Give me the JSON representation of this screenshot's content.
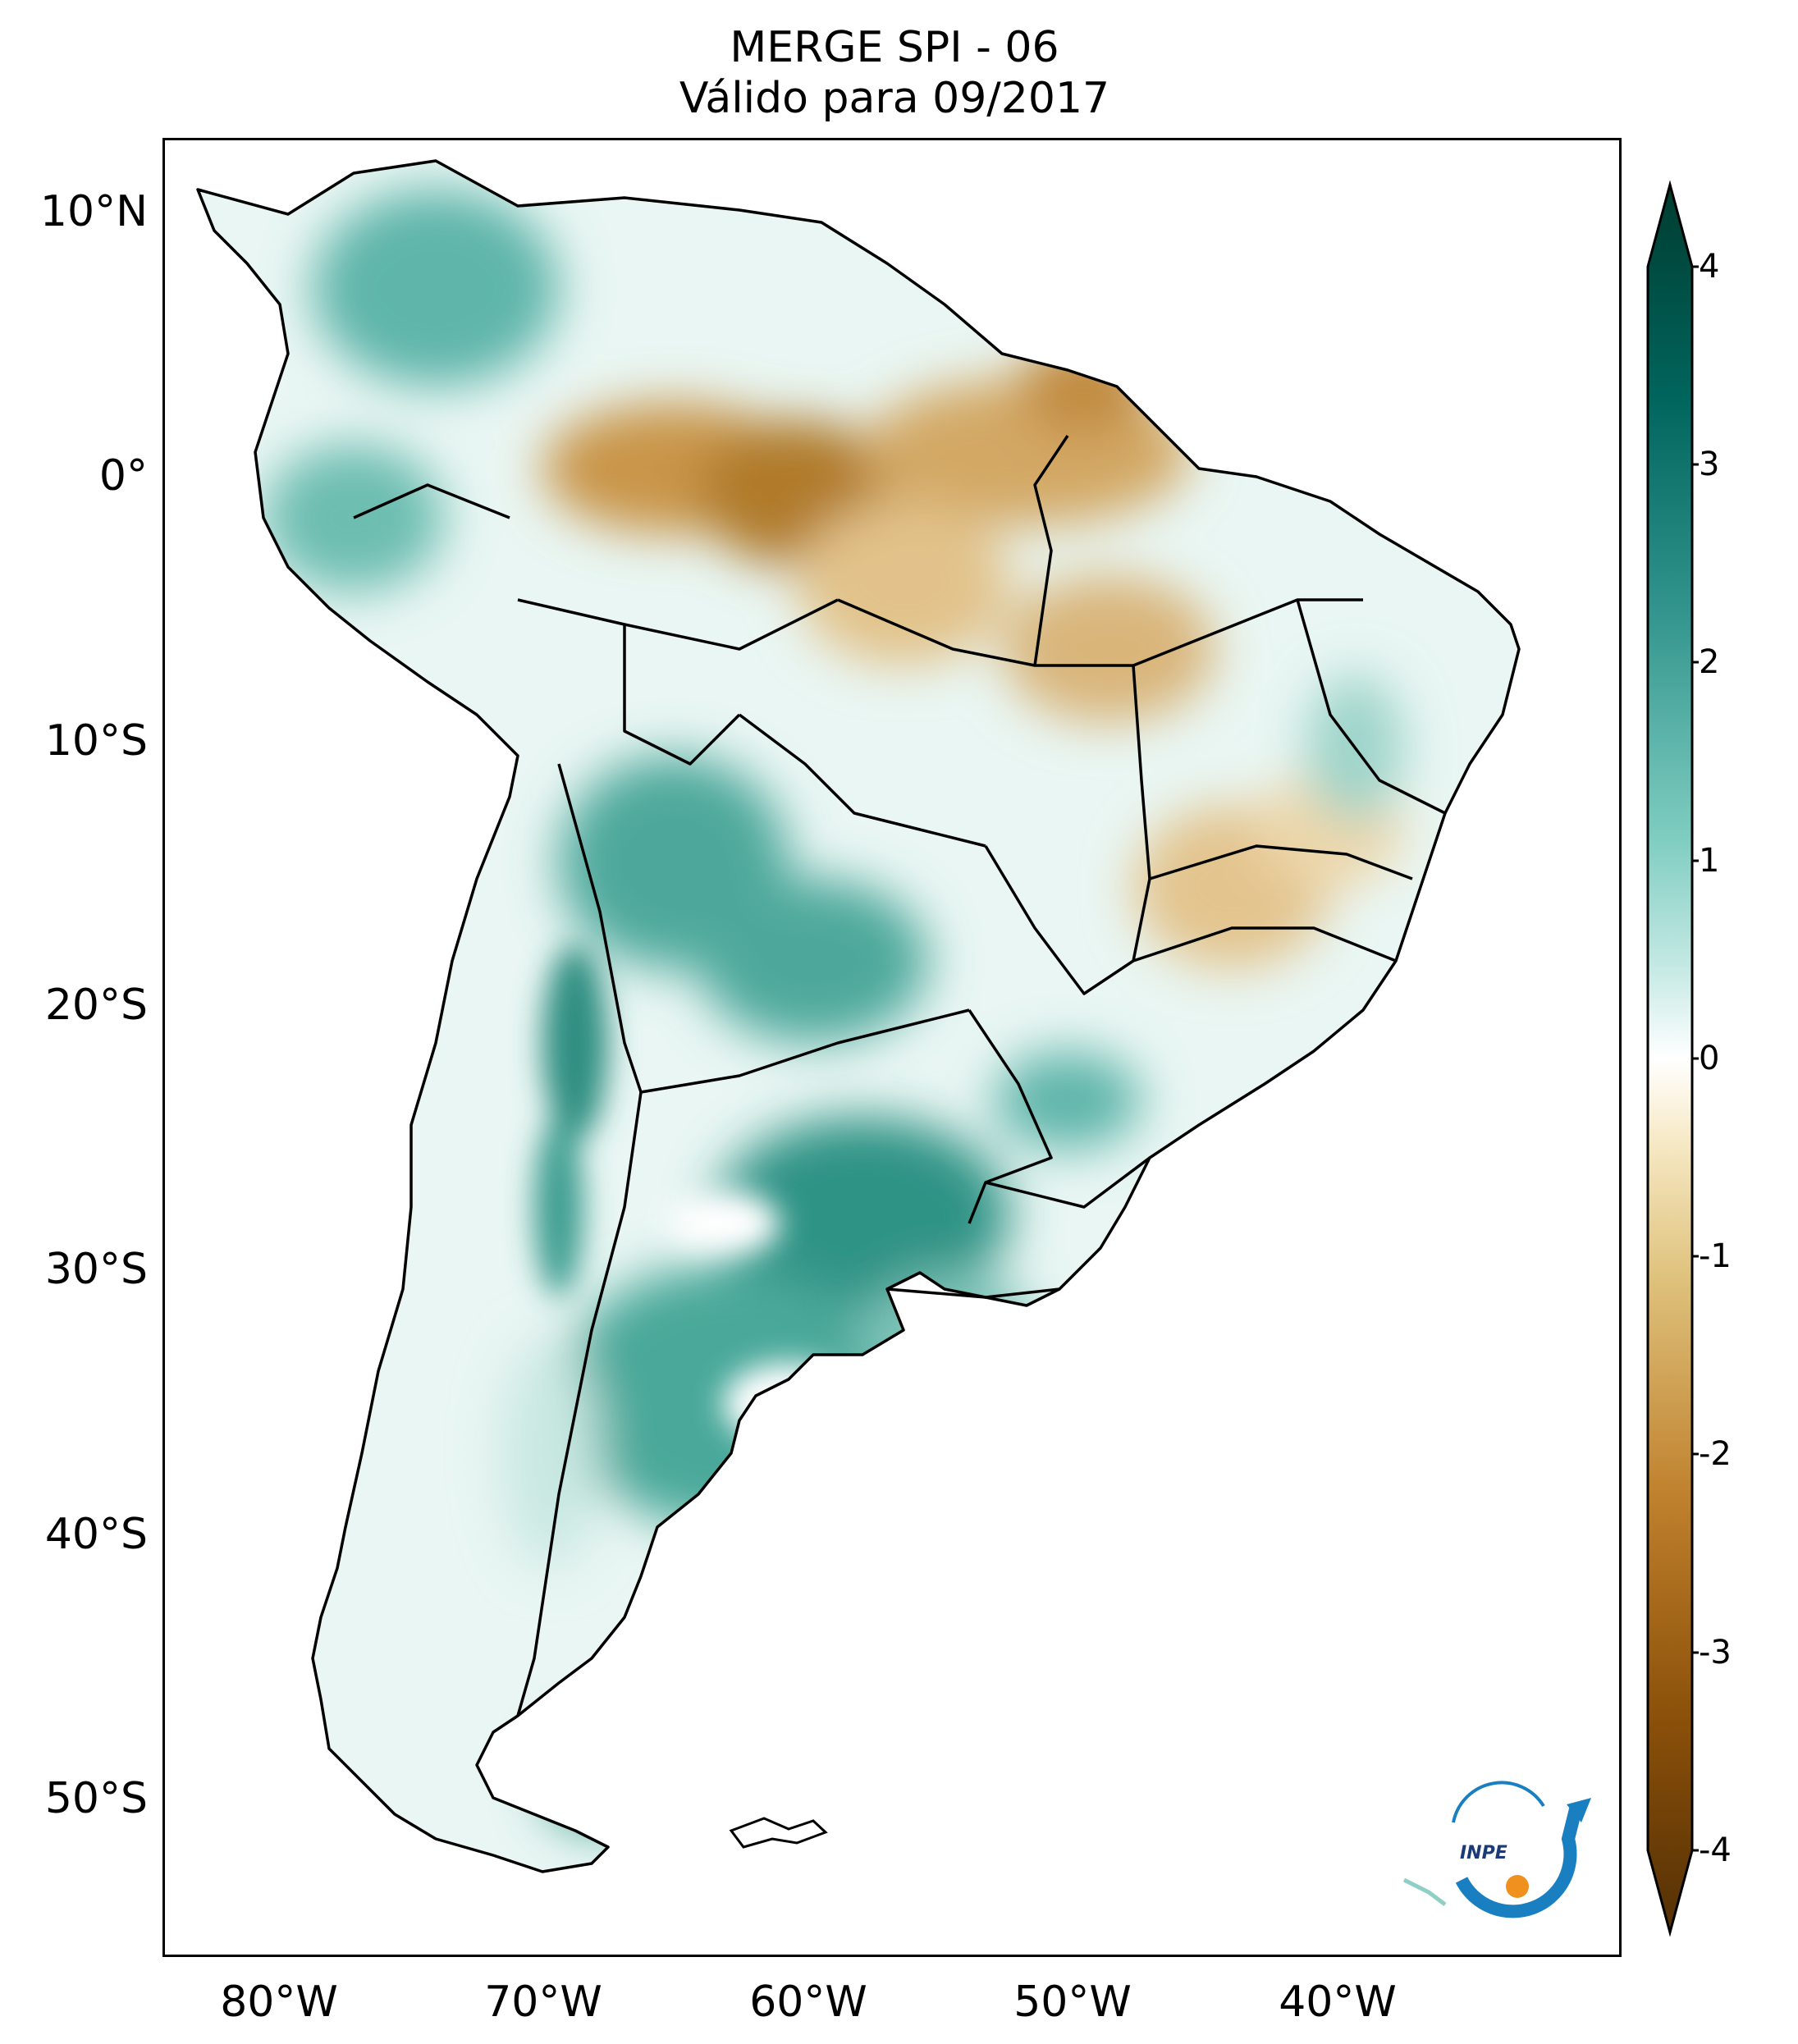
{
  "title": {
    "line1": "MERGE   SPI - 06",
    "line2": "Válido para 09/2017"
  },
  "axes": {
    "lat_labels": [
      "10°N",
      "0°",
      "10°S",
      "20°S",
      "30°S",
      "40°S",
      "50°S"
    ],
    "lon_labels": [
      "80°W",
      "70°W",
      "60°W",
      "50°W",
      "40°W"
    ]
  },
  "colorbar": {
    "min": -4,
    "max": 4,
    "ticks": [
      "4",
      "3",
      "2",
      "1",
      "0",
      "-1",
      "-2",
      "-3",
      "-4"
    ],
    "colors": {
      "positive_max": "#003c30",
      "positive_mid": "#35978f",
      "positive_low": "#c7eae5",
      "neutral": "#ffffff",
      "negative_low": "#f6e8c3",
      "negative_mid": "#bf812d",
      "negative_max": "#543005"
    }
  },
  "logo": {
    "text": "INPE",
    "colors": {
      "arc": "#1a7fc1",
      "dot": "#f0901e"
    }
  },
  "map": {
    "wet_color": "#3aa597",
    "dry_color": "#b07a2a",
    "border_color": "#000000"
  }
}
